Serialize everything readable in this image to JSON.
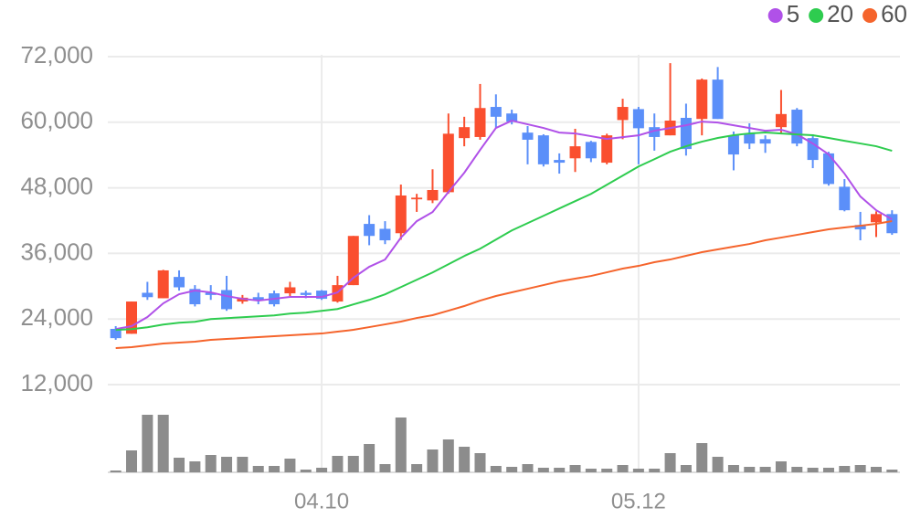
{
  "chart_data": {
    "type": "candlestick",
    "categories": [
      null,
      null,
      null,
      null,
      null,
      null,
      null,
      null,
      null,
      null,
      null,
      null,
      null,
      "04.10",
      null,
      null,
      null,
      null,
      null,
      null,
      null,
      null,
      null,
      null,
      null,
      null,
      null,
      null,
      null,
      null,
      null,
      null,
      null,
      "05.12",
      null,
      null,
      null,
      null,
      null,
      null,
      null,
      null,
      null,
      null,
      null,
      null,
      null,
      null,
      null,
      null
    ],
    "candles": {
      "open": [
        22200,
        21300,
        28800,
        27800,
        31700,
        29500,
        28800,
        29300,
        27200,
        28000,
        28700,
        28700,
        28800,
        29200,
        27200,
        30200,
        41400,
        40500,
        39700,
        45900,
        45700,
        47200,
        57100,
        57300,
        62800,
        61600,
        58100,
        57600,
        53100,
        53400,
        56400,
        52600,
        60400,
        62400,
        59100,
        57600,
        60800,
        60600,
        67800,
        57600,
        57900,
        56900,
        59100,
        62300,
        57100,
        54300,
        48200,
        41200,
        41700,
        43200
      ],
      "high": [
        22700,
        27200,
        30800,
        33000,
        32900,
        30200,
        30200,
        31900,
        28400,
        28800,
        29200,
        30800,
        29200,
        29300,
        31900,
        39200,
        43000,
        41900,
        48600,
        46900,
        51400,
        61600,
        61000,
        67000,
        65100,
        62300,
        59300,
        57800,
        54300,
        58800,
        56600,
        57900,
        64300,
        62800,
        61600,
        70800,
        63400,
        68000,
        70100,
        58300,
        59800,
        57600,
        65900,
        62600,
        57800,
        54600,
        49600,
        43600,
        43700,
        43900
      ],
      "low": [
        20200,
        21300,
        27500,
        27800,
        29200,
        26300,
        27500,
        25500,
        26800,
        26700,
        26300,
        28200,
        27800,
        27500,
        27000,
        30200,
        37500,
        37700,
        38500,
        43600,
        45200,
        46900,
        55600,
        56800,
        58900,
        59600,
        52300,
        51900,
        50600,
        50900,
        52700,
        52300,
        56900,
        52300,
        54800,
        57600,
        53900,
        57600,
        60600,
        51200,
        55100,
        54400,
        57800,
        55600,
        51600,
        48400,
        43700,
        38400,
        39000,
        39400
      ],
      "close": [
        20500,
        27200,
        28000,
        32900,
        29800,
        26700,
        28400,
        25800,
        27900,
        27500,
        26700,
        29800,
        28400,
        27700,
        30200,
        39200,
        39200,
        38400,
        46600,
        46200,
        47600,
        57900,
        59100,
        62600,
        61000,
        60100,
        56800,
        52300,
        52600,
        55600,
        53400,
        57600,
        62800,
        58900,
        57300,
        60300,
        55100,
        67800,
        60600,
        54100,
        56100,
        56100,
        61500,
        56100,
        53100,
        48700,
        43900,
        40400,
        43200,
        39700
      ],
      "up_color": "#fa4f2f",
      "down_color": "#5b8ff9"
    },
    "series": [
      {
        "name": "5",
        "color": "#b051e8",
        "values": [
          22160,
          22690,
          24360,
          26870,
          28540,
          29210,
          28870,
          28200,
          27700,
          27370,
          27700,
          28040,
          28040,
          28040,
          28870,
          31540,
          33550,
          34880,
          38890,
          41900,
          43570,
          47250,
          50760,
          54940,
          58950,
          60290,
          59620,
          58950,
          58110,
          57950,
          57450,
          56940,
          57280,
          57610,
          58450,
          58950,
          59450,
          60120,
          59950,
          59450,
          58950,
          58450,
          58620,
          57780,
          56110,
          54110,
          50600,
          46420,
          43910,
          42240
        ]
      },
      {
        "name": "20",
        "color": "#2ecc4f",
        "values": [
          22000,
          22160,
          22490,
          22990,
          23330,
          23490,
          23990,
          24160,
          24330,
          24500,
          24660,
          24990,
          25160,
          25500,
          25830,
          26670,
          27500,
          28510,
          29840,
          31180,
          32520,
          34020,
          35530,
          36860,
          38530,
          40210,
          41540,
          42880,
          44220,
          45560,
          46890,
          48560,
          50230,
          51900,
          53240,
          54610,
          55610,
          56450,
          57120,
          57620,
          57950,
          58120,
          57950,
          57780,
          57620,
          57120,
          56610,
          56110,
          55610,
          54780
        ]
      },
      {
        "name": "60",
        "color": "#f5642c",
        "values": [
          18680,
          18850,
          19180,
          19520,
          19680,
          19850,
          20180,
          20350,
          20520,
          20690,
          20850,
          21020,
          21190,
          21350,
          21690,
          22020,
          22520,
          23020,
          23530,
          24190,
          24700,
          25530,
          26370,
          27370,
          28210,
          28880,
          29540,
          30210,
          30880,
          31380,
          31880,
          32550,
          33220,
          33720,
          34390,
          34890,
          35560,
          36230,
          36730,
          37230,
          37730,
          38400,
          38900,
          39400,
          39910,
          40410,
          40740,
          41070,
          41410,
          41910
        ]
      }
    ],
    "volume": {
      "color": "#8c8c8c",
      "ylim": [
        0,
        70
      ],
      "values": [
        2,
        24,
        63,
        63,
        16,
        12,
        19,
        17,
        17,
        7,
        7,
        15,
        3,
        5,
        18,
        18,
        31,
        9,
        60,
        9,
        25,
        36,
        28,
        21,
        7,
        6,
        9,
        5,
        5,
        8,
        4,
        4,
        8,
        4,
        4,
        21,
        8,
        32,
        17,
        8,
        6,
        6,
        12,
        6,
        5,
        5,
        7,
        8,
        6,
        3
      ]
    },
    "ylim": [
      0,
      72000
    ],
    "yticks": [
      {
        "value": 12000,
        "label": "12,000"
      },
      {
        "value": 24000,
        "label": "24,000"
      },
      {
        "value": 36000,
        "label": "36,000"
      },
      {
        "value": 48000,
        "label": "48,000"
      },
      {
        "value": 60000,
        "label": "60,000"
      },
      {
        "value": 72000,
        "label": "72,000"
      }
    ],
    "grid": true,
    "legend": "top-right"
  }
}
